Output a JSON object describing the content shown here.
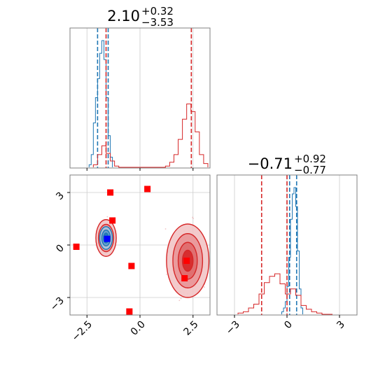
{
  "colors": {
    "series_a": "#1f77b4",
    "series_b": "#d62728",
    "marker": "#ff0000",
    "marker_truth": "#0000ff",
    "grid": "#cccccc",
    "frame": "#808080"
  },
  "titles": {
    "param_1": {
      "base": "2.10",
      "sup": "+0.32",
      "sub": "−3.53"
    },
    "param_2": {
      "base": "−0.71",
      "sup": "+0.92",
      "sub": "−0.77"
    }
  },
  "chart_data": [
    {
      "type": "histogram",
      "panel": "marginal-param-1",
      "title": "2.10 +0.32 −3.53",
      "xlim": [
        -3.3,
        3.3
      ],
      "grid": true,
      "series": [
        {
          "color": "#1f77b4",
          "bin_edges": [
            -2.4,
            -2.3,
            -2.2,
            -2.1,
            -2.0,
            -1.9,
            -1.8,
            -1.7,
            -1.6,
            -1.5,
            -1.4,
            -1.3
          ],
          "counts": [
            0.02,
            0.1,
            0.35,
            0.55,
            0.7,
            0.9,
            1.0,
            0.85,
            0.55,
            0.25,
            0.08
          ],
          "quantile_lines": [
            -2.0,
            -1.5
          ]
        },
        {
          "color": "#d62728",
          "bin_edges": [
            -2.2,
            -2.0,
            -1.8,
            -1.6,
            -1.4,
            -1.2,
            -1.0,
            0.0,
            1.2,
            1.4,
            1.6,
            1.8,
            2.0,
            2.2,
            2.4,
            2.6,
            2.8,
            3.0,
            3.2
          ],
          "counts": [
            0.02,
            0.1,
            0.17,
            0.11,
            0.05,
            0.01,
            0.0,
            0.0,
            0.01,
            0.04,
            0.1,
            0.22,
            0.38,
            0.5,
            0.44,
            0.28,
            0.1,
            0.03
          ],
          "quantile_lines": [
            -1.6,
            2.42
          ]
        }
      ]
    },
    {
      "type": "scatter",
      "panel": "joint-param-1-param-2",
      "xlim": [
        -3.3,
        3.3
      ],
      "ylim": [
        -4.0,
        4.0
      ],
      "xticks": [
        "−2.5",
        "0.0",
        "2.5"
      ],
      "yticks": [
        "−3",
        "0",
        "3"
      ],
      "grid": true,
      "red_markers": [
        [
          -1.4,
          3.0
        ],
        [
          -1.3,
          1.4
        ],
        [
          -3.0,
          -0.1
        ],
        [
          -0.4,
          -1.2
        ],
        [
          0.35,
          3.2
        ],
        [
          -0.5,
          -3.8
        ],
        [
          2.2,
          -0.9
        ],
        [
          2.1,
          -1.9
        ]
      ],
      "blue_markers": [
        [
          -1.55,
          0.35
        ]
      ],
      "contour_clusters": [
        {
          "color": "#1f77b4",
          "center": [
            -1.6,
            0.4
          ]
        },
        {
          "color": "#d62728",
          "center": [
            -1.6,
            0.4
          ]
        },
        {
          "color": "#d62728",
          "center": [
            2.25,
            -0.9
          ]
        }
      ]
    },
    {
      "type": "histogram",
      "panel": "marginal-param-2",
      "title": "−0.71 +0.92 −0.77",
      "xlim": [
        -4.0,
        4.0
      ],
      "xticks": [
        "−3",
        "0",
        "3"
      ],
      "grid": true,
      "series": [
        {
          "color": "#1f77b4",
          "bin_edges": [
            -0.3,
            -0.2,
            -0.1,
            0.0,
            0.1,
            0.2,
            0.3,
            0.4,
            0.5,
            0.6,
            0.7,
            0.8,
            0.9
          ],
          "counts": [
            0.02,
            0.05,
            0.1,
            0.22,
            0.45,
            0.75,
            0.95,
            1.0,
            0.85,
            0.5,
            0.2,
            0.05
          ],
          "quantile_lines": [
            0.15,
            0.55
          ]
        },
        {
          "color": "#d62728",
          "bin_edges": [
            -2.8,
            -2.5,
            -2.2,
            -1.9,
            -1.6,
            -1.3,
            -1.0,
            -0.7,
            -0.4,
            -0.1,
            0.2,
            0.5,
            0.8,
            1.1,
            1.4,
            1.7,
            2.0,
            2.3,
            2.6
          ],
          "counts": [
            0.01,
            0.02,
            0.05,
            0.08,
            0.16,
            0.25,
            0.3,
            0.32,
            0.24,
            0.16,
            0.2,
            0.15,
            0.07,
            0.04,
            0.02,
            0.01,
            0.0,
            0.0
          ],
          "quantile_lines": [
            -1.45,
            0.0
          ]
        }
      ]
    }
  ]
}
